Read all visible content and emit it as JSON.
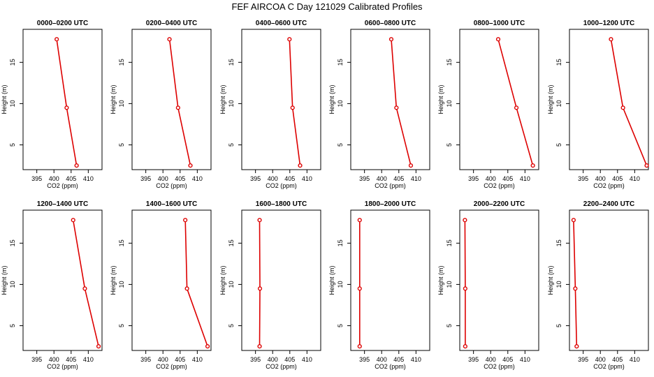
{
  "figure_title": "FEF AIRCOA C  Day 121029  Calibrated Profiles",
  "colors": {
    "line": "#dd0000",
    "marker": "#dd0000",
    "axis": "#000000",
    "background": "#ffffff"
  },
  "chart_data": [
    {
      "type": "line",
      "title": "0000–0200 UTC",
      "xlabel": "CO2 (ppm)",
      "ylabel": "Height (m)",
      "xlim": [
        391,
        414
      ],
      "ylim": [
        2.0,
        19.0
      ],
      "xticks": [
        395,
        400,
        405,
        410
      ],
      "yticks": [
        5,
        10,
        15
      ],
      "x": [
        406.6,
        403.7,
        400.8
      ],
      "y": [
        2.5,
        9.5,
        17.8
      ]
    },
    {
      "type": "line",
      "title": "0200–0400 UTC",
      "xlabel": "CO2 (ppm)",
      "ylabel": "Height (m)",
      "xlim": [
        391,
        414
      ],
      "ylim": [
        2.0,
        19.0
      ],
      "xticks": [
        395,
        400,
        405,
        410
      ],
      "yticks": [
        5,
        10,
        15
      ],
      "x": [
        408.0,
        404.4,
        401.9
      ],
      "y": [
        2.5,
        9.5,
        17.8
      ]
    },
    {
      "type": "line",
      "title": "0400–0600 UTC",
      "xlabel": "CO2 (ppm)",
      "ylabel": "Height (m)",
      "xlim": [
        391,
        414
      ],
      "ylim": [
        2.0,
        19.0
      ],
      "xticks": [
        395,
        400,
        405,
        410
      ],
      "yticks": [
        5,
        10,
        15
      ],
      "x": [
        408.0,
        405.8,
        404.9
      ],
      "y": [
        2.5,
        9.5,
        17.8
      ]
    },
    {
      "type": "line",
      "title": "0600–0800 UTC",
      "xlabel": "CO2 (ppm)",
      "ylabel": "Height (m)",
      "xlim": [
        391,
        414
      ],
      "ylim": [
        2.0,
        19.0
      ],
      "xticks": [
        395,
        400,
        405,
        410
      ],
      "yticks": [
        5,
        10,
        15
      ],
      "x": [
        408.5,
        404.3,
        402.8
      ],
      "y": [
        2.5,
        9.5,
        17.8
      ]
    },
    {
      "type": "line",
      "title": "0800–1000 UTC",
      "xlabel": "CO2 (ppm)",
      "ylabel": "Height (m)",
      "xlim": [
        391,
        414
      ],
      "ylim": [
        2.0,
        19.0
      ],
      "xticks": [
        395,
        400,
        405,
        410
      ],
      "yticks": [
        5,
        10,
        15
      ],
      "x": [
        412.3,
        407.5,
        402.2
      ],
      "y": [
        2.5,
        9.5,
        17.8
      ]
    },
    {
      "type": "line",
      "title": "1000–1200 UTC",
      "xlabel": "CO2 (ppm)",
      "ylabel": "Height (m)",
      "xlim": [
        391,
        414
      ],
      "ylim": [
        2.0,
        19.0
      ],
      "xticks": [
        395,
        400,
        405,
        410
      ],
      "yticks": [
        5,
        10,
        15
      ],
      "x": [
        413.5,
        406.6,
        403.1
      ],
      "y": [
        2.5,
        9.5,
        17.8
      ]
    },
    {
      "type": "line",
      "title": "1200–1400 UTC",
      "xlabel": "CO2 (ppm)",
      "ylabel": "Height (m)",
      "xlim": [
        391,
        414
      ],
      "ylim": [
        2.0,
        19.0
      ],
      "xticks": [
        395,
        400,
        405,
        410
      ],
      "yticks": [
        5,
        10,
        15
      ],
      "x": [
        413.0,
        409.0,
        405.6
      ],
      "y": [
        2.5,
        9.5,
        17.8
      ]
    },
    {
      "type": "line",
      "title": "1400–1600 UTC",
      "xlabel": "CO2 (ppm)",
      "ylabel": "Height (m)",
      "xlim": [
        391,
        414
      ],
      "ylim": [
        2.0,
        19.0
      ],
      "xticks": [
        395,
        400,
        405,
        410
      ],
      "yticks": [
        5,
        10,
        15
      ],
      "x": [
        413.0,
        407.0,
        406.5
      ],
      "y": [
        2.5,
        9.5,
        17.8
      ]
    },
    {
      "type": "line",
      "title": "1600–1800 UTC",
      "xlabel": "CO2 (ppm)",
      "ylabel": "Height (m)",
      "xlim": [
        391,
        414
      ],
      "ylim": [
        2.0,
        19.0
      ],
      "xticks": [
        395,
        400,
        405,
        410
      ],
      "yticks": [
        5,
        10,
        15
      ],
      "x": [
        396.2,
        396.3,
        396.2
      ],
      "y": [
        2.5,
        9.5,
        17.8
      ]
    },
    {
      "type": "line",
      "title": "1800–2000 UTC",
      "xlabel": "CO2 (ppm)",
      "ylabel": "Height (m)",
      "xlim": [
        391,
        414
      ],
      "ylim": [
        2.0,
        19.0
      ],
      "xticks": [
        395,
        400,
        405,
        410
      ],
      "yticks": [
        5,
        10,
        15
      ],
      "x": [
        393.6,
        393.6,
        393.6
      ],
      "y": [
        2.5,
        9.5,
        17.8
      ]
    },
    {
      "type": "line",
      "title": "2000–2200 UTC",
      "xlabel": "CO2 (ppm)",
      "ylabel": "Height (m)",
      "xlim": [
        391,
        414
      ],
      "ylim": [
        2.0,
        19.0
      ],
      "xticks": [
        395,
        400,
        405,
        410
      ],
      "yticks": [
        5,
        10,
        15
      ],
      "x": [
        392.6,
        392.6,
        392.5
      ],
      "y": [
        2.5,
        9.5,
        17.8
      ]
    },
    {
      "type": "line",
      "title": "2200–2400 UTC",
      "xlabel": "CO2 (ppm)",
      "ylabel": "Height (m)",
      "xlim": [
        391,
        414
      ],
      "ylim": [
        2.0,
        19.0
      ],
      "xticks": [
        395,
        400,
        405,
        410
      ],
      "yticks": [
        5,
        10,
        15
      ],
      "x": [
        393.1,
        392.7,
        392.2
      ],
      "y": [
        2.5,
        9.5,
        17.8
      ]
    }
  ]
}
